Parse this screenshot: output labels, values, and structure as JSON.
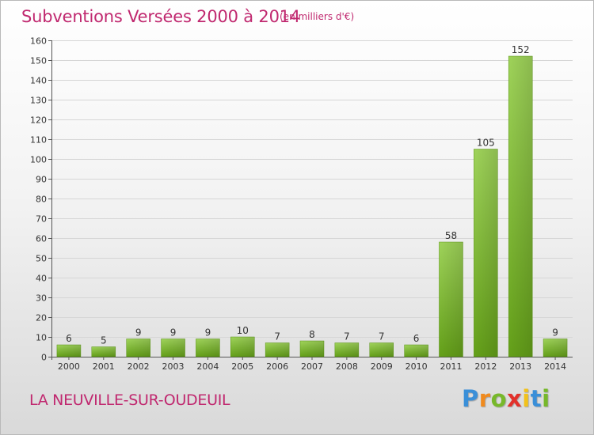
{
  "header": {
    "title": "Subventions Versées 2000 à 2014",
    "subtitle": "(en milliers d'€)"
  },
  "footer": {
    "commune": "LA NEUVILLE-SUR-OUDEUIL",
    "brand_letters": [
      "P",
      "r",
      "o",
      "x",
      "i",
      "t",
      "i"
    ],
    "brand_colors": [
      "#3a8fd8",
      "#f08a1e",
      "#77b82a",
      "#e2312b",
      "#f2c21b",
      "#3a8fd8",
      "#77b82a"
    ]
  },
  "chart_data": {
    "type": "bar",
    "title": "Subventions Versées 2000 à 2014",
    "subtitle": "(en milliers d'€)",
    "categories": [
      "2000",
      "2001",
      "2002",
      "2003",
      "2004",
      "2005",
      "2006",
      "2007",
      "2008",
      "2009",
      "2010",
      "2011",
      "2012",
      "2013",
      "2014"
    ],
    "values": [
      6,
      5,
      9,
      9,
      9,
      10,
      7,
      8,
      7,
      7,
      6,
      58,
      105,
      152,
      9
    ],
    "value_labels": [
      "6",
      "5",
      "9",
      "9",
      "9",
      "10",
      "7",
      "8",
      "7",
      "7",
      "6",
      "58",
      "105",
      "152",
      "9"
    ],
    "ylim": [
      0,
      160
    ],
    "yticks": [
      0,
      10,
      20,
      30,
      40,
      50,
      60,
      70,
      80,
      90,
      100,
      110,
      120,
      130,
      140,
      150,
      160
    ],
    "grid": true,
    "bar_color": "#7cbf2a"
  }
}
